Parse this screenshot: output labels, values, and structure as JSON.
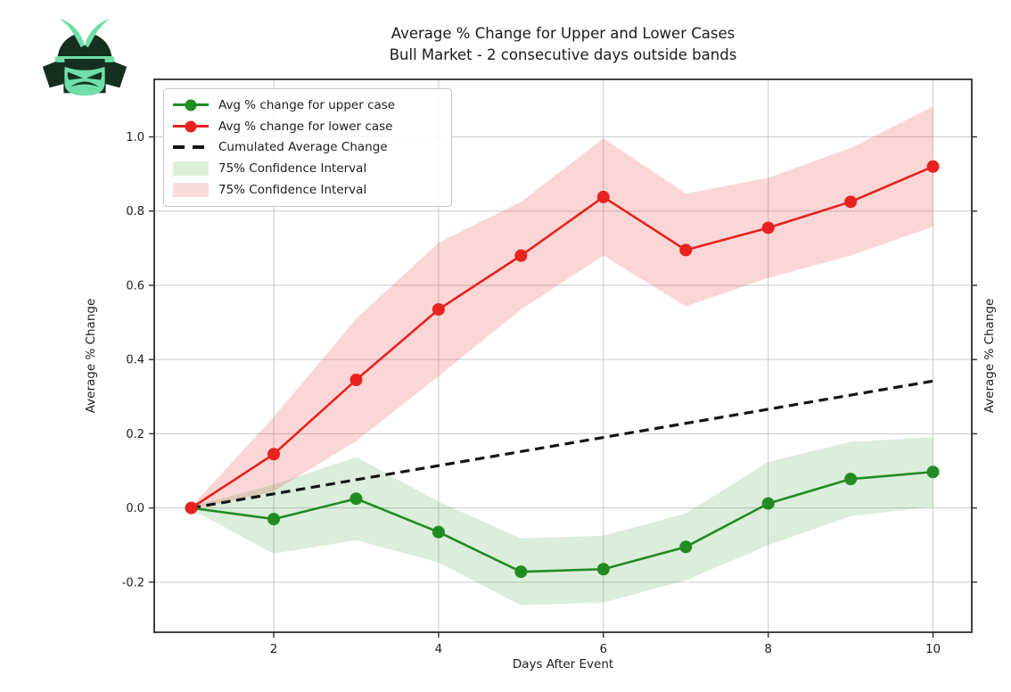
{
  "logo": {
    "name": "samurai-helmet",
    "dark_color": "#15301e",
    "mint_color": "#70dfa7",
    "circle_color": "#ffffff"
  },
  "title": {
    "line1": "Average % Change for Upper and Lower Cases",
    "line2": "Bull Market - 2 consecutive days outside bands"
  },
  "axes": {
    "xlabel": "Days After Event",
    "ylabel_left": "Average % Change",
    "ylabel_right": "Average % Change"
  },
  "legend": {
    "items": [
      {
        "label": "Avg % change for upper case",
        "swatch": "line-marker",
        "color": "#218c21"
      },
      {
        "label": "Avg % change for lower case",
        "swatch": "line-marker",
        "color": "#e8221e"
      },
      {
        "label": "Cumulated Average Change",
        "swatch": "dashed-line",
        "color": "#141414"
      },
      {
        "label": "75% Confidence Interval",
        "swatch": "patch",
        "color": "#daf1d6"
      },
      {
        "label": "75% Confidence Interval",
        "swatch": "patch",
        "color": "#f8dcda"
      }
    ]
  },
  "chart_data": {
    "type": "line",
    "title": "Average % Change for Upper and Lower Cases — Bull Market - 2 consecutive days outside bands",
    "xlabel": "Days After Event",
    "ylabel": "Average % Change",
    "x": [
      1,
      2,
      3,
      4,
      5,
      6,
      7,
      8,
      9,
      10
    ],
    "series": [
      {
        "name": "Avg % change for upper case",
        "color": "#218c21",
        "style": "solid-marker",
        "values": [
          0.0,
          -0.03,
          0.025,
          -0.065,
          -0.172,
          -0.165,
          -0.105,
          0.012,
          0.078,
          0.097
        ]
      },
      {
        "name": "Avg % change for lower case",
        "color": "#e8221e",
        "style": "solid-marker",
        "values": [
          0.0,
          0.145,
          0.345,
          0.535,
          0.68,
          0.838,
          0.695,
          0.755,
          0.825,
          0.92
        ]
      },
      {
        "name": "Cumulated Average Change",
        "color": "#141414",
        "style": "dashed",
        "values": [
          0.0,
          0.038,
          0.076,
          0.114,
          0.152,
          0.19,
          0.228,
          0.266,
          0.304,
          0.342
        ]
      }
    ],
    "bands": [
      {
        "name": "75% Confidence Interval",
        "around_series": 0,
        "fill": "rgba(40,150,40,0.17)",
        "half_width": [
          0.004,
          0.093,
          0.112,
          0.082,
          0.09,
          0.09,
          0.09,
          0.112,
          0.1,
          0.094
        ]
      },
      {
        "name": "75% Confidence Interval",
        "around_series": 1,
        "fill": "rgba(230,40,35,0.19)",
        "half_width": [
          0.004,
          0.1,
          0.165,
          0.18,
          0.145,
          0.158,
          0.152,
          0.135,
          0.145,
          0.162
        ]
      }
    ],
    "xticks": {
      "values": [
        2,
        4,
        6,
        8,
        10
      ],
      "labels": [
        "2",
        "4",
        "6",
        "8",
        "10"
      ]
    },
    "yticks": {
      "values": [
        -0.2,
        0.0,
        0.2,
        0.4,
        0.6,
        0.8,
        1.0
      ],
      "labels": [
        "-0.2",
        "0.0",
        "0.2",
        "0.4",
        "0.6",
        "0.8",
        "1.0"
      ]
    },
    "xlim": [
      0.55,
      10.47
    ],
    "ylim": [
      -0.335,
      1.155
    ],
    "grid": true,
    "legend_position": "upper left",
    "grid_color": "#c9c9c9",
    "frame_color": "#2d2d2d",
    "tick_text_color": "#1e1e1e"
  }
}
